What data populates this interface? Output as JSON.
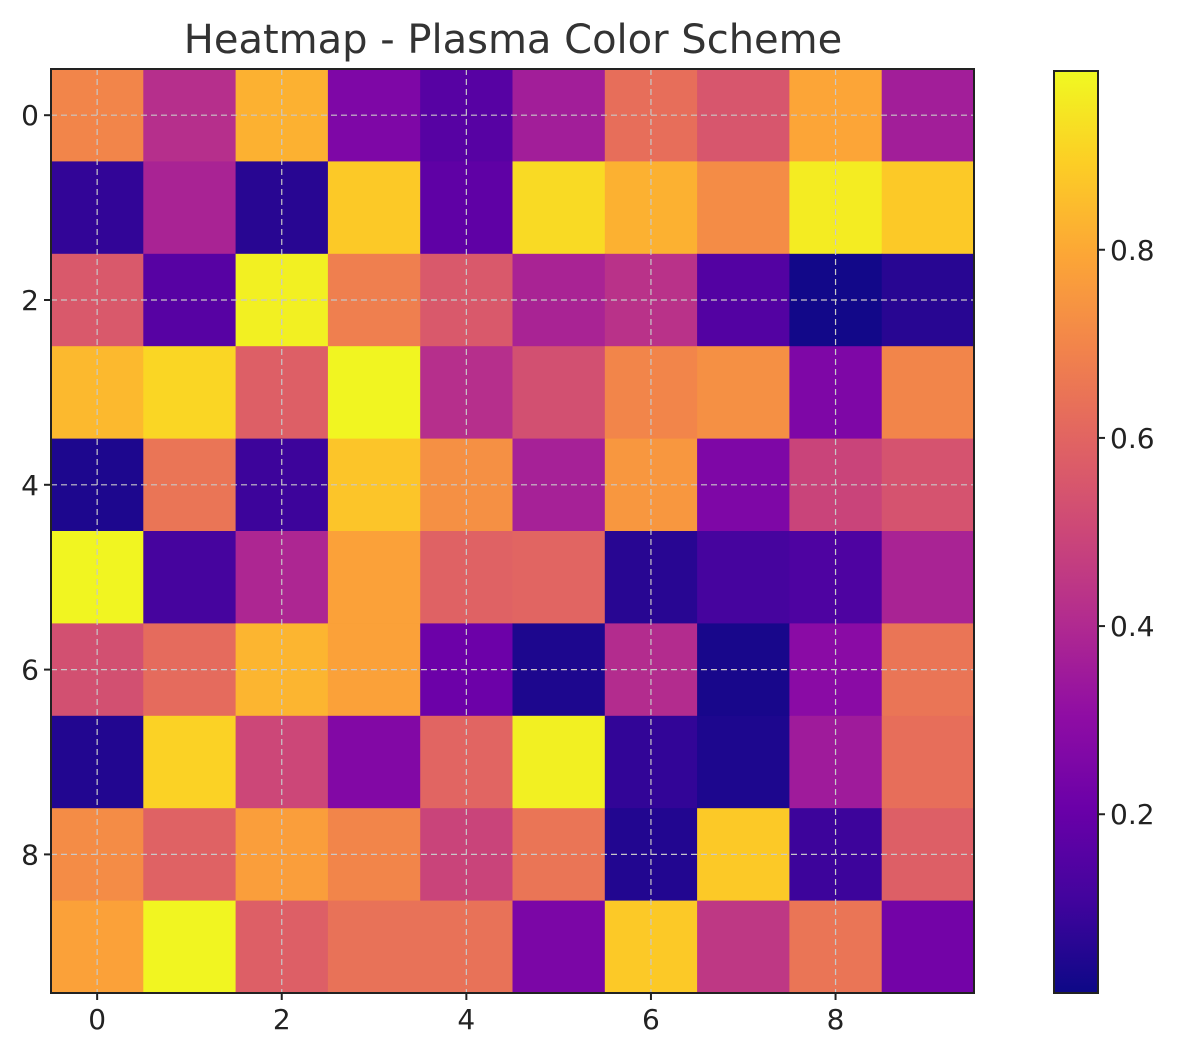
{
  "chart_data": {
    "type": "heatmap",
    "title": "Heatmap - Plasma Color Scheme",
    "colormap": "plasma",
    "xlabel": "",
    "ylabel": "",
    "x_ticks": [
      0,
      2,
      4,
      6,
      8
    ],
    "y_ticks": [
      0,
      2,
      4,
      6,
      8
    ],
    "grid": true,
    "colorbar": {
      "range": [
        0.01,
        0.99
      ],
      "ticks": [
        0.2,
        0.4,
        0.6,
        0.8
      ],
      "tick_labels": [
        "0.2",
        "0.4",
        "0.6",
        "0.8"
      ]
    },
    "values": [
      [
        0.7,
        0.42,
        0.82,
        0.26,
        0.16,
        0.36,
        0.63,
        0.55,
        0.79,
        0.36
      ],
      [
        0.08,
        0.38,
        0.06,
        0.88,
        0.18,
        0.92,
        0.82,
        0.72,
        0.96,
        0.88
      ],
      [
        0.56,
        0.16,
        0.97,
        0.68,
        0.56,
        0.38,
        0.43,
        0.15,
        0.02,
        0.06
      ],
      [
        0.84,
        0.91,
        0.58,
        0.98,
        0.42,
        0.53,
        0.7,
        0.73,
        0.26,
        0.7
      ],
      [
        0.04,
        0.65,
        0.1,
        0.87,
        0.73,
        0.37,
        0.75,
        0.26,
        0.49,
        0.54
      ],
      [
        0.98,
        0.12,
        0.39,
        0.78,
        0.59,
        0.6,
        0.06,
        0.12,
        0.14,
        0.38
      ],
      [
        0.53,
        0.62,
        0.83,
        0.78,
        0.21,
        0.04,
        0.41,
        0.03,
        0.29,
        0.65
      ],
      [
        0.05,
        0.9,
        0.5,
        0.27,
        0.6,
        0.97,
        0.08,
        0.04,
        0.35,
        0.63
      ],
      [
        0.72,
        0.59,
        0.77,
        0.7,
        0.49,
        0.65,
        0.05,
        0.88,
        0.1,
        0.58
      ],
      [
        0.78,
        0.98,
        0.58,
        0.64,
        0.64,
        0.25,
        0.88,
        0.45,
        0.65,
        0.23
      ]
    ]
  }
}
